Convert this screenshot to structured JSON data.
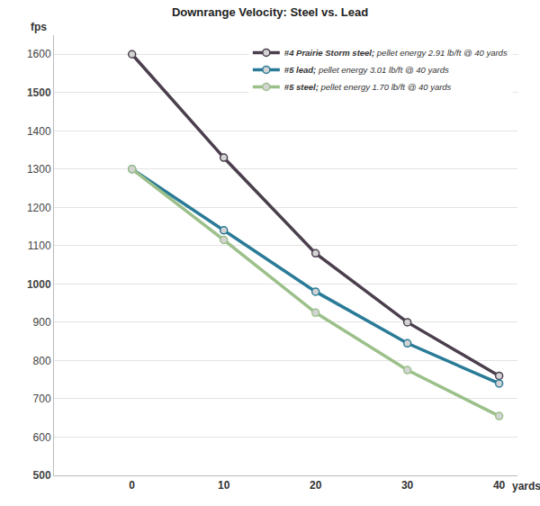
{
  "chart_data": {
    "type": "line",
    "title": "Downrange Velocity: Steel vs. Lead",
    "ylabel": "fps",
    "xlabel": "yards",
    "x": [
      0,
      10,
      20,
      30,
      40
    ],
    "series": [
      {
        "name": "#4 Prairie Storm steel; pellet energy 2.91 lb/ft @ 40 yards",
        "color": "#4b3f4e",
        "values": [
          1600,
          1330,
          1080,
          900,
          760
        ]
      },
      {
        "name": "#5 lead; pellet energy 3.01 lb/ft @ 40 yards",
        "color": "#2a7b97",
        "values": [
          1300,
          1140,
          980,
          845,
          740
        ]
      },
      {
        "name": "#5 steel; pellet energy 1.70 lb/ft @ 40 yards",
        "color": "#9cc08a",
        "values": [
          1300,
          1115,
          925,
          775,
          655
        ]
      }
    ],
    "xlim": [
      -8.5,
      42
    ],
    "xticks": [
      0,
      10,
      20,
      30,
      40
    ],
    "ylim": [
      500,
      1650
    ],
    "yticks": [
      500,
      600,
      700,
      800,
      900,
      1000,
      1100,
      1200,
      1300,
      1400,
      1500,
      1600
    ],
    "grid": true,
    "legend": "top-right",
    "marker": "circle",
    "line_style": "solid"
  }
}
